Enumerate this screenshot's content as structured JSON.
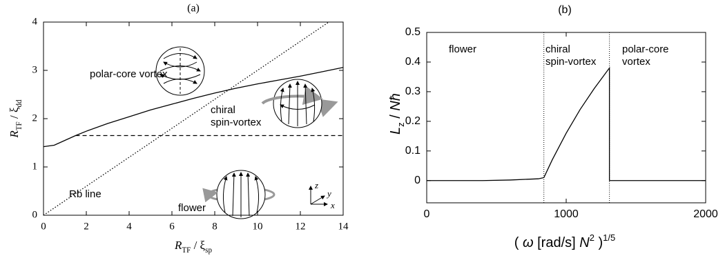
{
  "chart_data": [
    {
      "type": "line",
      "title": "(a)",
      "x_label": [
        {
          "text": "R",
          "style": "italic"
        },
        {
          "text": "TF",
          "style": "sub"
        },
        {
          "text": " / ξ",
          "style": "normal"
        },
        {
          "text": "sp",
          "style": "sub"
        }
      ],
      "y_label": [
        {
          "text": "R",
          "style": "italic"
        },
        {
          "text": "TF",
          "style": "sub"
        },
        {
          "text": " / ξ",
          "style": "normal"
        },
        {
          "text": "dd",
          "style": "sub"
        }
      ],
      "xlim": [
        0,
        14
      ],
      "ylim": [
        0,
        4
      ],
      "xticks": [
        0,
        2,
        4,
        6,
        8,
        10,
        12,
        14
      ],
      "yticks": [
        0,
        1,
        2,
        3,
        4
      ],
      "series": [
        {
          "style": "solid",
          "color": "#000000",
          "x": [
            0,
            0.5,
            1,
            1.5,
            2,
            3,
            4,
            5,
            6,
            7,
            8,
            9,
            10,
            11,
            12,
            13,
            14
          ],
          "values": [
            1.42,
            1.45,
            1.55,
            1.65,
            1.74,
            1.9,
            2.04,
            2.18,
            2.3,
            2.42,
            2.53,
            2.63,
            2.72,
            2.8,
            2.88,
            2.97,
            3.06
          ]
        },
        {
          "style": "dashed",
          "color": "#000000",
          "x": [
            1.5,
            14
          ],
          "values": [
            1.65,
            1.65
          ]
        },
        {
          "style": "dotted",
          "color": "#000000",
          "x": [
            0,
            13.33
          ],
          "values": [
            0,
            4
          ]
        }
      ],
      "annotations": [
        {
          "lines": [
            "polar-core vortex"
          ]
        },
        {
          "lines": [
            "chiral",
            "spin-vortex"
          ]
        },
        {
          "lines": [
            "flower"
          ]
        },
        {
          "lines": [
            "Rb line"
          ]
        }
      ],
      "coordinate_labels": [
        "z",
        "y",
        "x"
      ]
    },
    {
      "type": "line",
      "title": "(b)",
      "x_label": [
        {
          "text": "( ",
          "style": "normal"
        },
        {
          "text": "ω",
          "style": "italic"
        },
        {
          "text": " [rad/s] ",
          "style": "normal"
        },
        {
          "text": "N",
          "style": "italic"
        },
        {
          "text": "2",
          "style": "sup"
        },
        {
          "text": " )",
          "style": "normal"
        },
        {
          "text": "1/5",
          "style": "sup"
        }
      ],
      "y_label": [
        {
          "text": "L",
          "style": "italic"
        },
        {
          "text": "z",
          "style": "sub"
        },
        {
          "text": " / ",
          "style": "normal"
        },
        {
          "text": "Nħ",
          "style": "italic"
        }
      ],
      "xlim": [
        0,
        2000
      ],
      "ylim": [
        -0.075,
        0.5
      ],
      "xticks": [
        0,
        1000,
        2000
      ],
      "yticks": [
        0,
        0.1,
        0.2,
        0.3,
        0.4,
        0.5
      ],
      "series": [
        {
          "style": "solid",
          "color": "#000000",
          "x": [
            0,
            200,
            400,
            600,
            800,
            840,
            900,
            1000,
            1100,
            1200,
            1310,
            1310,
            2000
          ],
          "values": [
            0,
            0,
            0,
            0.002,
            0.006,
            0.01,
            0.07,
            0.16,
            0.24,
            0.31,
            0.38,
            0,
            0
          ]
        }
      ],
      "boundaries": [
        840,
        1310
      ],
      "annotations": [
        {
          "lines": [
            "flower"
          ]
        },
        {
          "lines": [
            "chiral",
            "spin-vortex"
          ]
        },
        {
          "lines": [
            "polar-core",
            "vortex"
          ]
        }
      ]
    }
  ]
}
